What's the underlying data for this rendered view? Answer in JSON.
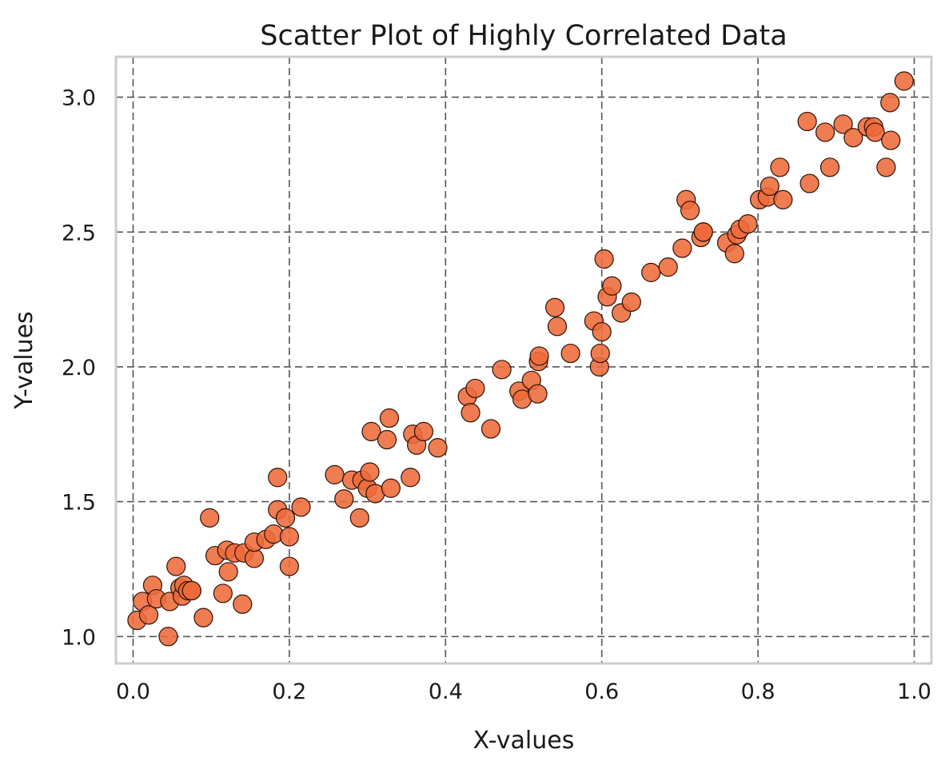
{
  "chart_data": {
    "type": "scatter",
    "title": "Scatter Plot of Highly Correlated Data",
    "xlabel": "X-values",
    "ylabel": "Y-values",
    "xlim": [
      -0.022,
      1.022
    ],
    "ylim": [
      0.9,
      3.15
    ],
    "xticks": [
      0.0,
      0.2,
      0.4,
      0.6,
      0.8,
      1.0
    ],
    "xtick_labels": [
      "0.0",
      "0.2",
      "0.4",
      "0.6",
      "0.8",
      "1.0"
    ],
    "yticks": [
      1.0,
      1.5,
      2.0,
      2.5,
      3.0
    ],
    "ytick_labels": [
      "1.0",
      "1.5",
      "2.0",
      "2.5",
      "3.0"
    ],
    "grid": true,
    "legend": "none",
    "colors": {
      "marker_fill": "#ee6a3a",
      "marker_edge": "#2b1206",
      "grid": "#555555",
      "frame": "#cccccc"
    },
    "marker_alpha": 0.88,
    "series": [
      {
        "x": [
          0.005,
          0.012,
          0.02,
          0.025,
          0.03,
          0.045,
          0.047,
          0.055,
          0.06,
          0.063,
          0.065,
          0.07,
          0.075,
          0.075,
          0.09,
          0.098,
          0.105,
          0.115,
          0.12,
          0.122,
          0.13,
          0.14,
          0.142,
          0.155,
          0.155,
          0.17,
          0.18,
          0.185,
          0.185,
          0.195,
          0.2,
          0.2,
          0.215,
          0.258,
          0.27,
          0.28,
          0.29,
          0.293,
          0.3,
          0.303,
          0.305,
          0.31,
          0.325,
          0.328,
          0.33,
          0.355,
          0.358,
          0.363,
          0.372,
          0.39,
          0.428,
          0.432,
          0.438,
          0.458,
          0.472,
          0.494,
          0.498,
          0.51,
          0.518,
          0.519,
          0.52,
          0.54,
          0.543,
          0.56,
          0.59,
          0.597,
          0.598,
          0.6,
          0.603,
          0.607,
          0.613,
          0.625,
          0.638,
          0.663,
          0.685,
          0.703,
          0.708,
          0.713,
          0.727,
          0.73,
          0.73,
          0.76,
          0.77,
          0.773,
          0.777,
          0.787,
          0.802,
          0.812,
          0.815,
          0.828,
          0.832,
          0.863,
          0.866,
          0.886,
          0.892,
          0.909,
          0.922,
          0.94,
          0.948,
          0.95,
          0.964,
          0.969,
          0.97,
          0.987
        ],
        "y": [
          1.06,
          1.13,
          1.08,
          1.19,
          1.14,
          1.0,
          1.13,
          1.26,
          1.18,
          1.15,
          1.19,
          1.17,
          1.17,
          1.17,
          1.07,
          1.44,
          1.3,
          1.16,
          1.32,
          1.24,
          1.31,
          1.12,
          1.31,
          1.29,
          1.35,
          1.36,
          1.38,
          1.47,
          1.59,
          1.44,
          1.37,
          1.26,
          1.48,
          1.6,
          1.51,
          1.58,
          1.44,
          1.58,
          1.55,
          1.61,
          1.76,
          1.53,
          1.73,
          1.81,
          1.55,
          1.59,
          1.75,
          1.71,
          1.76,
          1.7,
          1.89,
          1.83,
          1.92,
          1.77,
          1.99,
          1.91,
          1.88,
          1.95,
          1.9,
          2.02,
          2.04,
          2.22,
          2.15,
          2.05,
          2.17,
          2.0,
          2.05,
          2.13,
          2.4,
          2.26,
          2.3,
          2.2,
          2.24,
          2.35,
          2.37,
          2.44,
          2.62,
          2.58,
          2.48,
          2.5,
          2.5,
          2.46,
          2.42,
          2.49,
          2.51,
          2.53,
          2.62,
          2.63,
          2.67,
          2.74,
          2.62,
          2.91,
          2.68,
          2.87,
          2.74,
          2.9,
          2.85,
          2.89,
          2.89,
          2.87,
          2.74,
          2.98,
          2.84,
          3.06
        ]
      }
    ]
  }
}
